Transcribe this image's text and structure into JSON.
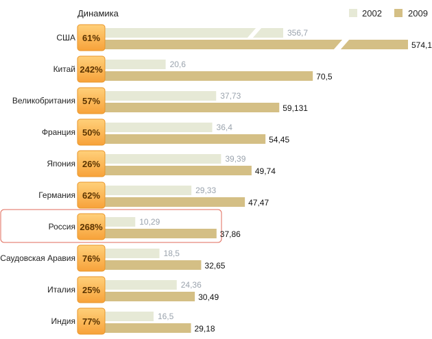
{
  "header": {
    "dynamics_label": "Динамика"
  },
  "colors": {
    "series_2002": "#e6e9d6",
    "series_2009": "#d4bf85",
    "badge_top": "#ffd07a",
    "badge_bottom": "#f7a23a",
    "highlight_border": "#e06a5a"
  },
  "chart_data": {
    "type": "bar",
    "orientation": "horizontal",
    "title": "",
    "xlabel": "",
    "ylabel": "",
    "legend_position": "top-right",
    "grid": false,
    "broken_axis_category": "США",
    "highlighted_category": "Россия",
    "categories": [
      "США",
      "Китай",
      "Великобритания",
      "Франция",
      "Япония",
      "Германия",
      "Россия",
      "Саудовская Аравия",
      "Италия",
      "Индия"
    ],
    "series": [
      {
        "name": "2002",
        "values": [
          356.7,
          20.6,
          37.73,
          36.4,
          39.39,
          29.33,
          10.29,
          18.5,
          24.36,
          16.5
        ],
        "labels": [
          "356,7",
          "20,6",
          "37,73",
          "36,4",
          "39,39",
          "29,33",
          "10,29",
          "18,5",
          "24,36",
          "16,5"
        ]
      },
      {
        "name": "2009",
        "values": [
          574.1,
          70.5,
          59.131,
          54.45,
          49.74,
          47.47,
          37.86,
          32.65,
          30.49,
          29.18
        ],
        "labels": [
          "574,1",
          "70,5",
          "59,131",
          "54,45",
          "49,74",
          "47,47",
          "37,86",
          "32,65",
          "30,49",
          "29,18"
        ]
      }
    ],
    "growth": [
      "61%",
      "242%",
      "57%",
      "50%",
      "26%",
      "62%",
      "268%",
      "76%",
      "25%",
      "77%"
    ]
  }
}
